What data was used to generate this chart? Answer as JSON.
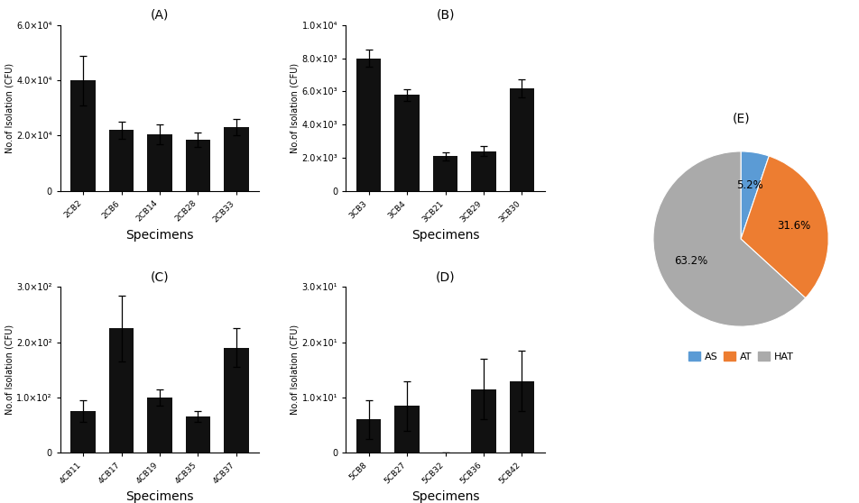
{
  "panel_A": {
    "title": "(A)",
    "categories": [
      "2CB2",
      "2CB6",
      "2CB14",
      "2CB28",
      "2CB33"
    ],
    "values": [
      40000.0,
      22000.0,
      20500.0,
      18500.0,
      23000.0
    ],
    "errors": [
      9000.0,
      3000.0,
      3500.0,
      2500.0,
      3000.0
    ],
    "ylim": [
      0,
      60000.0
    ],
    "yticks": [
      0,
      20000.0,
      40000.0,
      60000.0
    ],
    "ytick_labels": [
      "0",
      "2.0×10⁴",
      "4.0×10⁴",
      "6.0×10⁴"
    ],
    "ylabel": "No.of Isolation (CFU)",
    "xlabel": "Specimens"
  },
  "panel_B": {
    "title": "(B)",
    "categories": [
      "3CB3",
      "3CB4",
      "3CB21",
      "3CB29",
      "3CB30"
    ],
    "values": [
      8000.0,
      5800.0,
      2100.0,
      2400.0,
      6200.0
    ],
    "errors": [
      500.0,
      350.0,
      250.0,
      300.0,
      550.0
    ],
    "ylim": [
      0,
      10000.0
    ],
    "yticks": [
      0,
      2000.0,
      4000.0,
      6000.0,
      8000.0,
      10000.0
    ],
    "ytick_labels": [
      "0",
      "2.0×10³",
      "4.0×10³",
      "6.0×10³",
      "8.0×10³",
      "1.0×10⁴"
    ],
    "ylabel": "No.of Isolation (CFU)",
    "xlabel": "Specimens"
  },
  "panel_C": {
    "title": "(C)",
    "categories": [
      "4CB11",
      "4CB17",
      "4CB19",
      "4CB35",
      "4CB37"
    ],
    "values": [
      75,
      225,
      100,
      65,
      190
    ],
    "errors": [
      20,
      60,
      15,
      10,
      35
    ],
    "ylim": [
      0,
      300
    ],
    "yticks": [
      0,
      100,
      200,
      300
    ],
    "ytick_labels": [
      "0",
      "1.0×10²",
      "2.0×10²",
      "3.0×10²"
    ],
    "ylabel": "No.of Isolation (CFU)",
    "xlabel": "Specimens"
  },
  "panel_D": {
    "title": "(D)",
    "categories": [
      "5CB8",
      "5CB27",
      "5CB32",
      "5CB36",
      "5CB42"
    ],
    "values": [
      6.0,
      8.5,
      0.0,
      11.5,
      13.0
    ],
    "errors": [
      3.5,
      4.5,
      0.0,
      5.5,
      5.5
    ],
    "ylim": [
      0,
      30
    ],
    "yticks": [
      0,
      10,
      20,
      30
    ],
    "ytick_labels": [
      "0",
      "1.0×10¹",
      "2.0×10¹",
      "3.0×10¹"
    ],
    "ylabel": "No.of Isolation (CFU)",
    "xlabel": "Specimens"
  },
  "panel_E": {
    "title": "(E)",
    "labels": [
      "AS",
      "AT",
      "HAT"
    ],
    "values": [
      5.2,
      31.6,
      63.2
    ],
    "colors": [
      "#5B9BD5",
      "#ED7D31",
      "#AAAAAA"
    ],
    "legend_labels": [
      "AS",
      "AT",
      "HAT"
    ],
    "startangle": 90,
    "pct_distance": 0.65
  },
  "bar_color": "#111111",
  "background_color": "#ffffff"
}
